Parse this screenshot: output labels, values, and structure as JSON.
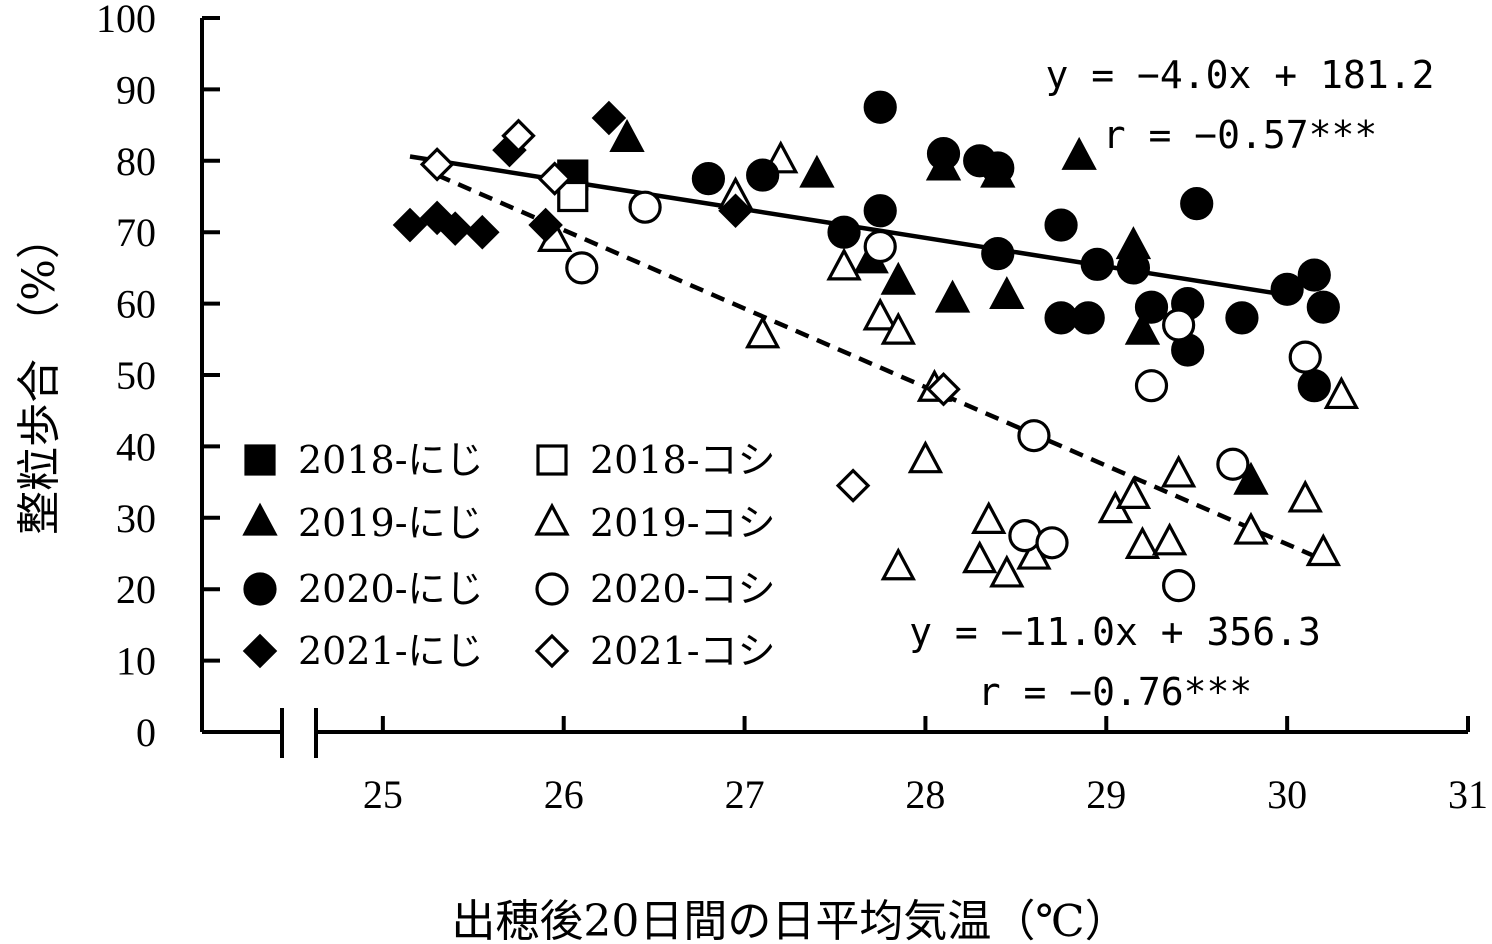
{
  "chart_data": {
    "type": "scatter",
    "xlabel": "出穂後20日間の日平均気温（℃）",
    "ylabel": "整粒歩合 （%）",
    "xlim": [
      24.0,
      31.0
    ],
    "ylim": [
      0,
      100
    ],
    "x_axis_break": true,
    "x_ticks": [
      "25",
      "26",
      "27",
      "28",
      "29",
      "30",
      "31"
    ],
    "y_ticks": [
      "0",
      "10",
      "20",
      "30",
      "40",
      "50",
      "60",
      "70",
      "80",
      "90",
      "100"
    ],
    "legend_placement": "lower-left",
    "series": [
      {
        "name": "2018-にじ",
        "marker": "square",
        "filled": true,
        "points": [
          [
            26.05,
            78
          ]
        ]
      },
      {
        "name": "2018-コシ",
        "marker": "square",
        "filled": false,
        "points": [
          [
            26.05,
            75
          ]
        ]
      },
      {
        "name": "2019-にじ",
        "marker": "triangle",
        "filled": true,
        "points": [
          [
            26.35,
            83
          ],
          [
            27.4,
            78
          ],
          [
            27.7,
            66
          ],
          [
            27.85,
            63
          ],
          [
            28.1,
            79
          ],
          [
            28.15,
            60.5
          ],
          [
            28.4,
            78
          ],
          [
            28.45,
            61
          ],
          [
            28.85,
            80.5
          ],
          [
            29.15,
            68
          ],
          [
            29.2,
            56
          ],
          [
            29.8,
            35
          ]
        ]
      },
      {
        "name": "2019-コシ",
        "marker": "triangle",
        "filled": false,
        "points": [
          [
            25.95,
            69
          ],
          [
            26.95,
            75
          ],
          [
            27.1,
            55.5
          ],
          [
            27.2,
            80
          ],
          [
            27.55,
            65
          ],
          [
            27.75,
            58
          ],
          [
            27.85,
            56
          ],
          [
            27.85,
            23
          ],
          [
            28.0,
            38
          ],
          [
            28.05,
            48
          ],
          [
            28.3,
            24
          ],
          [
            28.35,
            29.5
          ],
          [
            28.45,
            22
          ],
          [
            28.6,
            24.5
          ],
          [
            29.05,
            31
          ],
          [
            29.15,
            33
          ],
          [
            29.2,
            26
          ],
          [
            29.35,
            26.5
          ],
          [
            29.4,
            36
          ],
          [
            29.8,
            28
          ],
          [
            30.1,
            32.5
          ],
          [
            30.2,
            25
          ],
          [
            30.3,
            47
          ]
        ]
      },
      {
        "name": "2020-にじ",
        "marker": "circle",
        "filled": true,
        "points": [
          [
            26.8,
            77.5
          ],
          [
            27.1,
            78
          ],
          [
            27.55,
            70
          ],
          [
            27.75,
            87.5
          ],
          [
            27.75,
            73
          ],
          [
            28.1,
            81
          ],
          [
            28.3,
            80
          ],
          [
            28.4,
            79
          ],
          [
            28.4,
            67
          ],
          [
            28.75,
            71
          ],
          [
            28.75,
            58
          ],
          [
            28.9,
            58
          ],
          [
            28.95,
            65.5
          ],
          [
            29.15,
            65
          ],
          [
            29.25,
            59.5
          ],
          [
            29.45,
            60
          ],
          [
            29.45,
            53.5
          ],
          [
            29.5,
            74
          ],
          [
            29.75,
            58
          ],
          [
            30.0,
            62
          ],
          [
            30.15,
            64
          ],
          [
            30.2,
            59.5
          ],
          [
            30.15,
            48.5
          ]
        ]
      },
      {
        "name": "2020-コシ",
        "marker": "circle",
        "filled": false,
        "points": [
          [
            26.1,
            65
          ],
          [
            26.45,
            73.5
          ],
          [
            27.75,
            68
          ],
          [
            28.55,
            27.5
          ],
          [
            28.6,
            41.5
          ],
          [
            28.7,
            26.5
          ],
          [
            29.25,
            48.5
          ],
          [
            29.4,
            57
          ],
          [
            29.4,
            20.5
          ],
          [
            29.7,
            37.5
          ],
          [
            30.1,
            52.5
          ]
        ]
      },
      {
        "name": "2021-にじ",
        "marker": "diamond",
        "filled": true,
        "points": [
          [
            25.15,
            71
          ],
          [
            25.3,
            72
          ],
          [
            25.4,
            70.5
          ],
          [
            25.55,
            70
          ],
          [
            25.7,
            81.5
          ],
          [
            25.9,
            71
          ],
          [
            26.25,
            86
          ],
          [
            26.95,
            73
          ]
        ]
      },
      {
        "name": "2021-コシ",
        "marker": "diamond",
        "filled": false,
        "points": [
          [
            25.3,
            79.5
          ],
          [
            25.75,
            83.5
          ],
          [
            25.95,
            77.5
          ],
          [
            27.6,
            34.5
          ],
          [
            28.1,
            48
          ]
        ]
      }
    ],
    "regressions": [
      {
        "equation": "y = −4.0x + 181.2",
        "r": "r = −0.57***",
        "style": "solid",
        "x_range": [
          25.15,
          30.0
        ]
      },
      {
        "equation": "y = −11.0x + 356.3",
        "r": "r = −0.76***",
        "style": "dashed",
        "x_range": [
          25.3,
          30.2
        ]
      }
    ]
  }
}
